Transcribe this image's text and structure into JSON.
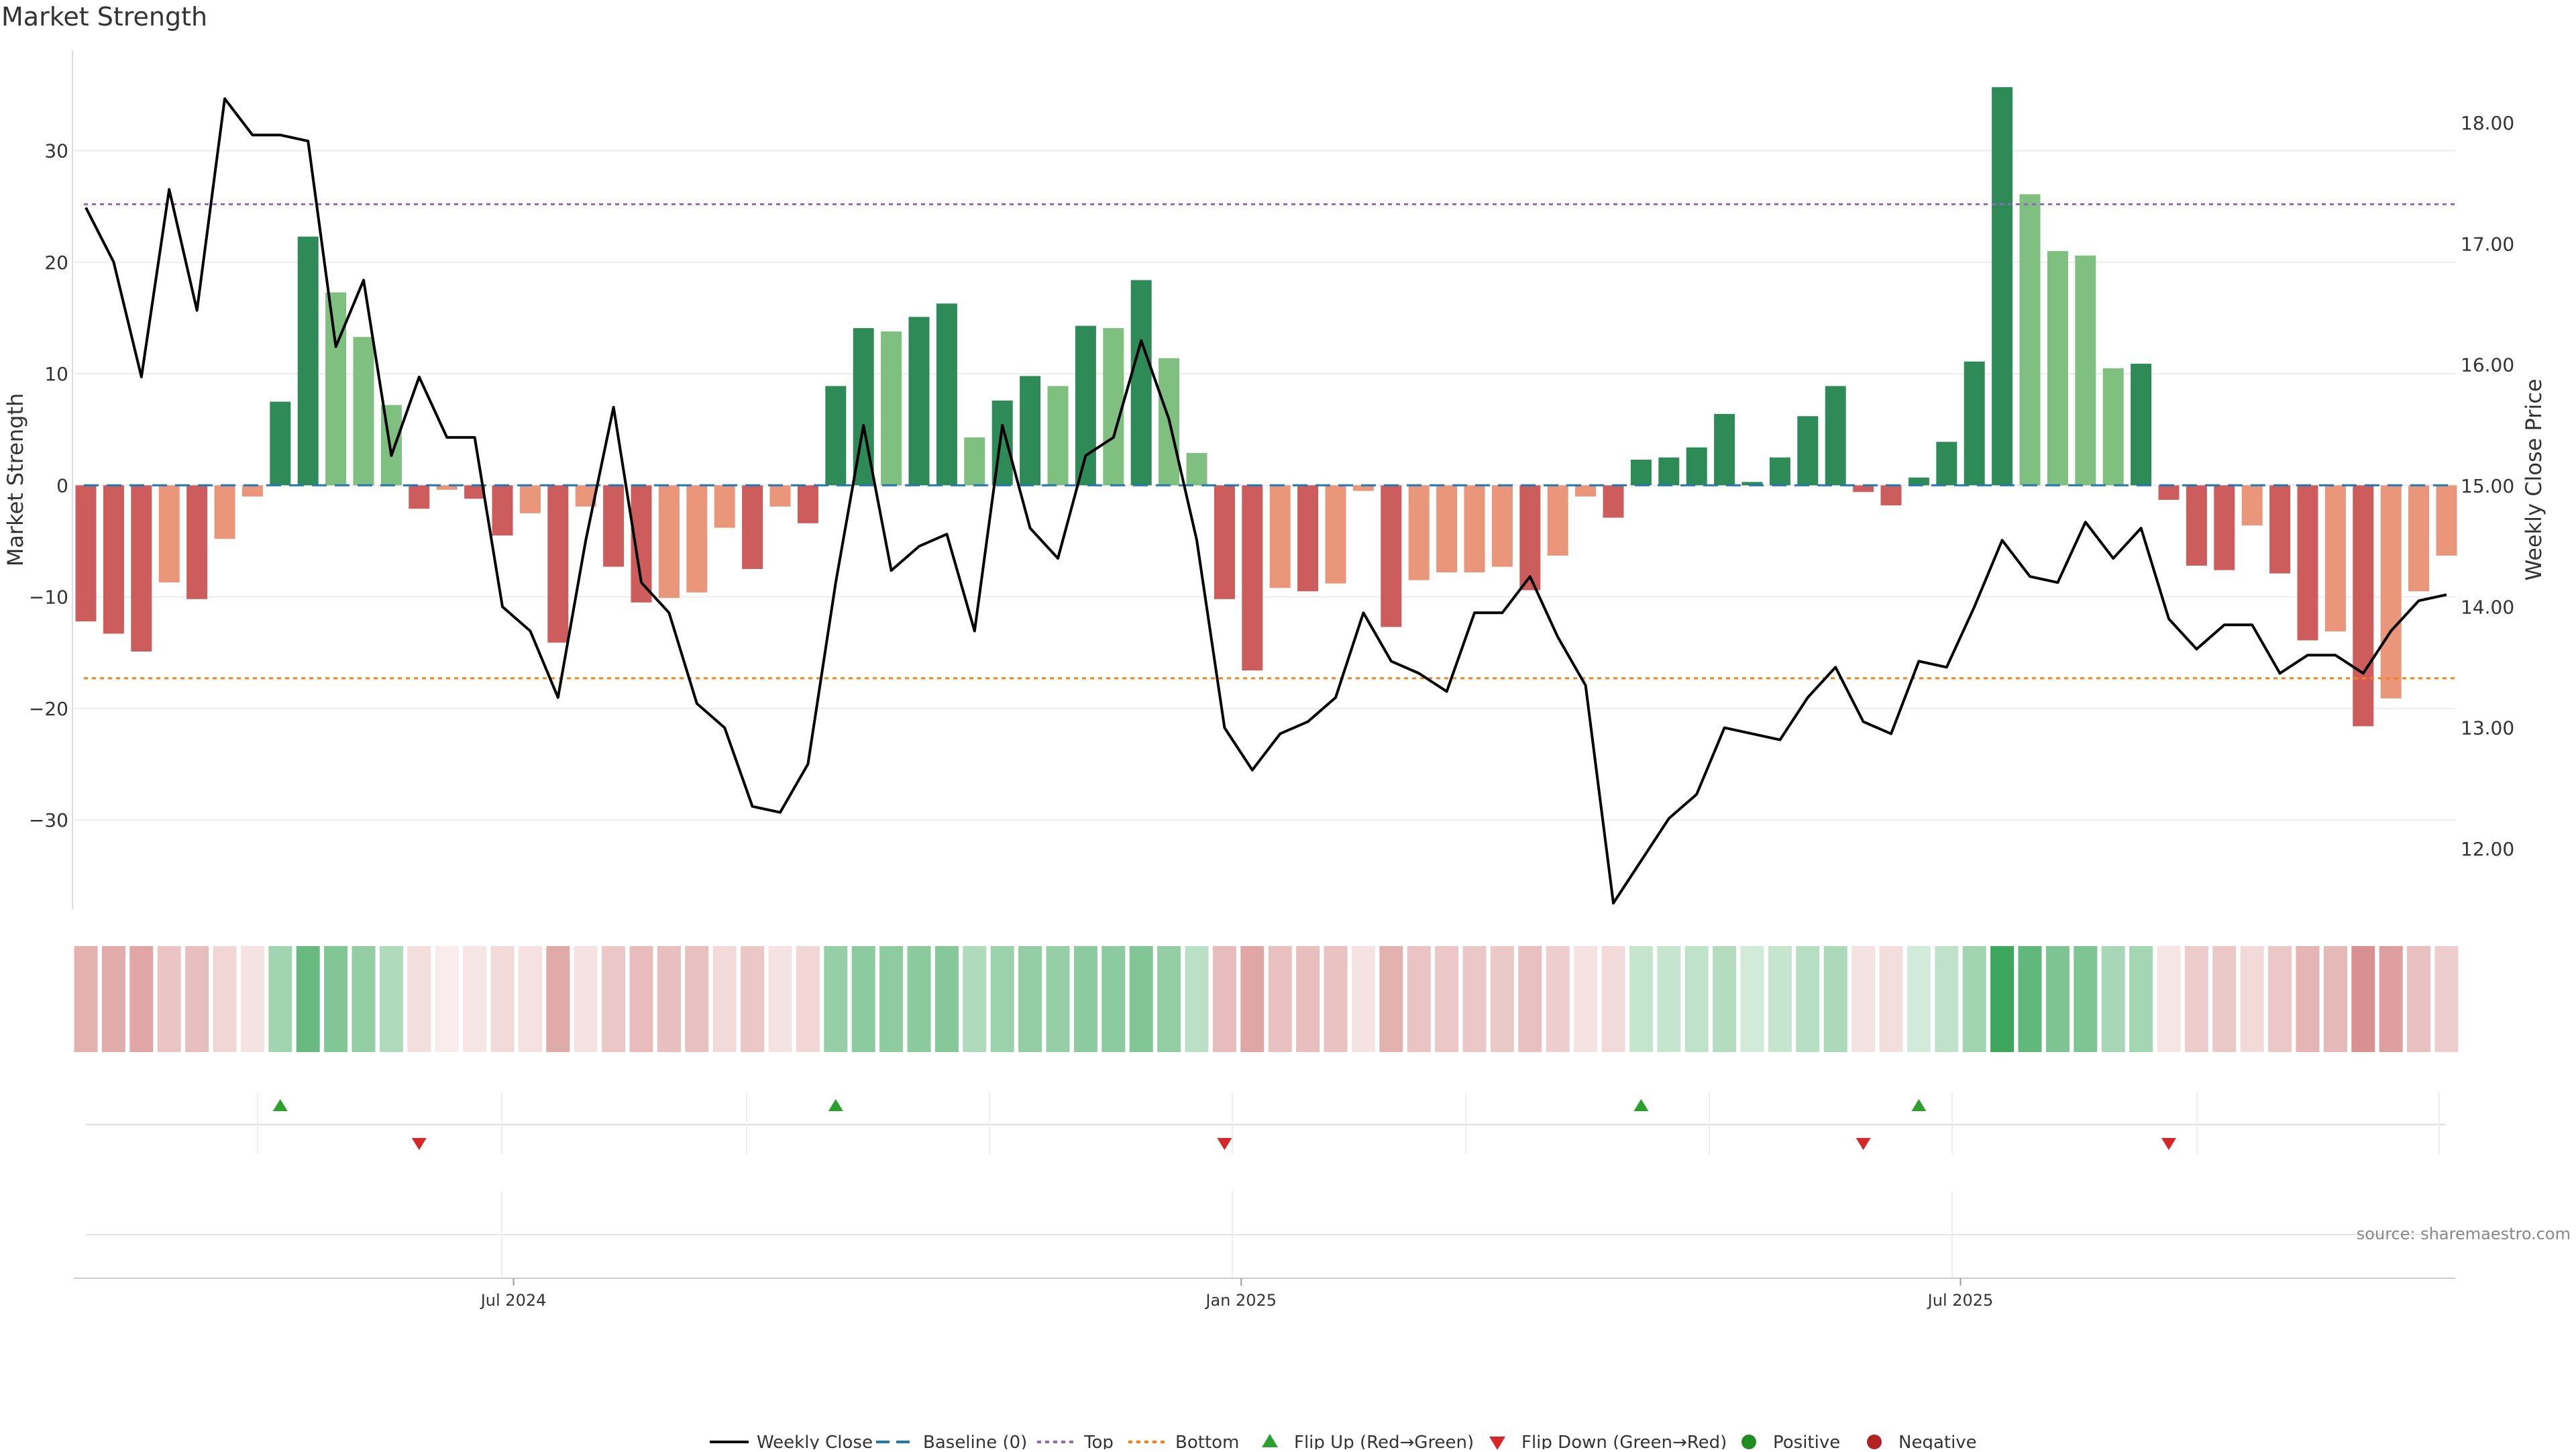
{
  "chart_data": {
    "type": "bar+line",
    "title": "Market Strength",
    "left_axis_label": "Market Strength",
    "right_axis_label": "Weekly Close Price",
    "left_ylim": [
      -38,
      39
    ],
    "right_ylim": [
      11.5,
      18.6
    ],
    "left_ticks": [
      30,
      20,
      10,
      0,
      -10,
      -20,
      -30
    ],
    "left_tick_labels": [
      "30",
      "20",
      "10",
      "0",
      "−10",
      "−20",
      "−30"
    ],
    "right_ticks": [
      18.0,
      17.0,
      16.0,
      15.0,
      14.0,
      13.0,
      12.0
    ],
    "right_tick_labels": [
      "18.00",
      "17.00",
      "16.00",
      "15.00",
      "14.00",
      "13.00",
      "12.00"
    ],
    "x_tick_labels": [
      "Jul 2024",
      "Jan 2025",
      "Jul 2025"
    ],
    "x_tick_weeks": [
      15.4,
      41.6,
      67.5
    ],
    "top_threshold": 25.2,
    "bottom_threshold": -17.3,
    "baseline": 0,
    "weeks": 86,
    "strength": [
      -12.2,
      -13.3,
      -14.9,
      -8.7,
      -10.2,
      -4.8,
      -1.0,
      7.5,
      22.3,
      17.3,
      13.3,
      7.2,
      -2.1,
      -0.4,
      -1.2,
      -4.5,
      -2.5,
      -14.1,
      -1.9,
      -7.3,
      -10.5,
      -10.1,
      -9.6,
      -3.8,
      -7.5,
      -1.9,
      -3.4,
      8.9,
      14.1,
      13.8,
      15.1,
      16.3,
      4.3,
      7.6,
      9.8,
      8.9,
      14.3,
      14.1,
      18.4,
      11.4,
      2.9,
      -10.2,
      -16.6,
      -9.2,
      -9.5,
      -8.8,
      -0.5,
      -12.7,
      -8.5,
      -7.8,
      -7.8,
      -7.3,
      -9.4,
      -6.3,
      -1.0,
      -2.9,
      2.3,
      2.5,
      3.4,
      6.4,
      0.3,
      2.5,
      6.2,
      8.9,
      -0.6,
      -1.8,
      0.7,
      3.9,
      11.1,
      35.7,
      26.1,
      21.0,
      20.6,
      10.5,
      10.9,
      -1.3,
      -7.2,
      -7.6,
      -3.6,
      -7.9,
      -13.9,
      -13.1,
      -21.6,
      -19.1,
      -9.5,
      -6.3
    ],
    "strength_magnitude": [
      "strong",
      "strong",
      "strong",
      "weak",
      "strong",
      "weak",
      "weak",
      "strong",
      "strong",
      "weak",
      "weak",
      "weak",
      "strong",
      "weak",
      "strong",
      "strong",
      "weak",
      "strong",
      "weak",
      "strong",
      "strong",
      "weak",
      "weak",
      "weak",
      "strong",
      "weak",
      "strong",
      "strong",
      "strong",
      "weak",
      "strong",
      "strong",
      "weak",
      "strong",
      "strong",
      "weak",
      "strong",
      "weak",
      "strong",
      "weak",
      "weak",
      "strong",
      "strong",
      "weak",
      "strong",
      "weak",
      "weak",
      "strong",
      "weak",
      "weak",
      "weak",
      "weak",
      "strong",
      "weak",
      "weak",
      "strong",
      "strong",
      "strong",
      "strong",
      "strong",
      "strong",
      "strong",
      "strong",
      "strong",
      "strong",
      "strong",
      "strong",
      "strong",
      "strong",
      "strong",
      "weak",
      "weak",
      "weak",
      "weak",
      "strong",
      "strong",
      "strong",
      "strong",
      "weak",
      "strong",
      "strong",
      "weak",
      "strong",
      "weak",
      "weak",
      "weak"
    ],
    "close": [
      17.3,
      16.85,
      15.9,
      17.45,
      16.45,
      18.2,
      17.9,
      17.9,
      17.85,
      16.15,
      16.7,
      15.25,
      15.9,
      15.4,
      15.4,
      14.0,
      13.8,
      13.25,
      14.55,
      15.65,
      14.2,
      13.95,
      13.2,
      13.0,
      12.35,
      12.3,
      12.7,
      14.2,
      15.5,
      14.3,
      14.5,
      14.6,
      13.8,
      15.5,
      14.65,
      14.4,
      15.25,
      15.4,
      16.2,
      15.55,
      14.55,
      13.0,
      12.65,
      12.95,
      13.05,
      13.25,
      13.95,
      13.55,
      13.45,
      13.3,
      13.95,
      13.95,
      14.25,
      13.75,
      13.35,
      11.55,
      11.9,
      12.25,
      12.45,
      13.0,
      12.95,
      12.9,
      13.25,
      13.5,
      13.05,
      12.95,
      13.55,
      13.5,
      14.0,
      14.55,
      14.25,
      14.2,
      14.7,
      14.4,
      14.65,
      13.9,
      13.65,
      13.85,
      13.85,
      13.45,
      13.6,
      13.6,
      13.45,
      13.8,
      14.05,
      14.1
    ],
    "heatmap_intensity": [
      0.42,
      0.45,
      0.48,
      0.32,
      0.35,
      0.22,
      0.15,
      0.45,
      0.72,
      0.6,
      0.52,
      0.38,
      0.18,
      0.1,
      0.14,
      0.2,
      0.16,
      0.46,
      0.15,
      0.3,
      0.36,
      0.35,
      0.34,
      0.2,
      0.3,
      0.15,
      0.22,
      0.5,
      0.55,
      0.54,
      0.56,
      0.58,
      0.38,
      0.48,
      0.52,
      0.5,
      0.55,
      0.55,
      0.6,
      0.52,
      0.32,
      0.36,
      0.48,
      0.34,
      0.35,
      0.33,
      0.15,
      0.42,
      0.32,
      0.3,
      0.3,
      0.29,
      0.34,
      0.27,
      0.15,
      0.2,
      0.28,
      0.28,
      0.3,
      0.36,
      0.22,
      0.28,
      0.35,
      0.4,
      0.15,
      0.18,
      0.22,
      0.3,
      0.45,
      0.92,
      0.75,
      0.62,
      0.61,
      0.42,
      0.43,
      0.14,
      0.28,
      0.29,
      0.2,
      0.3,
      0.4,
      0.38,
      0.6,
      0.52,
      0.34,
      0.27
    ],
    "flip_up_weeks": [
      7,
      27,
      56,
      66
    ],
    "flip_down_weeks": [
      12,
      41,
      64,
      75
    ],
    "series_colors": {
      "strong_positive": "#2e8b57",
      "weak_positive": "#7fbf7f",
      "strong_negative": "#cd5c5c",
      "weak_negative": "#e9967a",
      "close_line": "#000000",
      "baseline": "#1f77b4",
      "top": "#9467bd",
      "bottom": "#ff7f0e",
      "flip_up": "#2ca02c",
      "flip_down": "#d62728",
      "positive": "#228b22",
      "negative": "#b22222"
    },
    "legend": {
      "weekly_close": "Weekly Close",
      "baseline": "Baseline (0)",
      "top": "Top",
      "bottom": "Bottom",
      "flip_up": "Flip Up (Red→Green)",
      "flip_down": "Flip Down (Green→Red)",
      "positive": "Positive",
      "negative": "Negative"
    },
    "source_note": "source: sharemaestro.com"
  }
}
